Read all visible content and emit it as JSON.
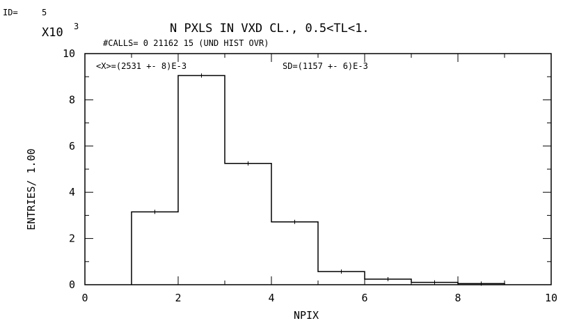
{
  "header": {
    "id_label": "ID=",
    "id_value": "5",
    "title": "N PXLS IN VXD CL., 0.5<TL<1.",
    "scale_base": "X10",
    "scale_exp": "3",
    "calls_line": "#CALLS= 0  21162  15   (UND HIST OVR)",
    "stats_mean": "<X>=(2531 +- 8)E-3",
    "stats_sd": "SD=(1157 +- 6)E-3"
  },
  "chart_data": {
    "type": "bar",
    "style": "histogram-step",
    "xlabel": "NPIX",
    "ylabel": "ENTRIES/   1.00",
    "y_multiplier": "X10^3",
    "xlim": [
      0,
      10
    ],
    "ylim": [
      0,
      10
    ],
    "x_ticks": [
      "0",
      "2",
      "4",
      "6",
      "8",
      "10"
    ],
    "y_ticks": [
      "0",
      "2",
      "4",
      "6",
      "8",
      "10"
    ],
    "bins": [
      {
        "x0": 1,
        "x1": 2,
        "value": 3.15
      },
      {
        "x0": 2,
        "x1": 3,
        "value": 9.05
      },
      {
        "x0": 3,
        "x1": 4,
        "value": 5.25
      },
      {
        "x0": 4,
        "x1": 5,
        "value": 2.72
      },
      {
        "x0": 5,
        "x1": 6,
        "value": 0.57
      },
      {
        "x0": 6,
        "x1": 7,
        "value": 0.24
      },
      {
        "x0": 7,
        "x1": 8,
        "value": 0.1
      },
      {
        "x0": 8,
        "x1": 9,
        "value": 0.05
      }
    ],
    "grid": false,
    "line_color": "#000000"
  }
}
